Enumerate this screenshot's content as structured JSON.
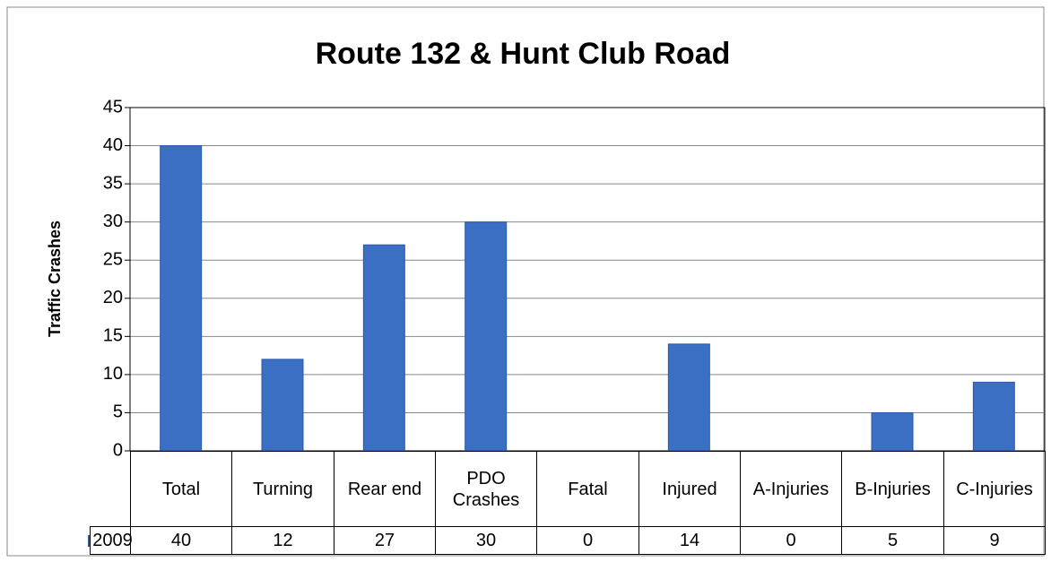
{
  "chart_data": {
    "type": "bar",
    "title": "Route 132 & Hunt Club Road",
    "y_label": "Traffic Crashes",
    "categories": [
      "Total",
      "Turning",
      "Rear end",
      "PDO Crashes",
      "Fatal",
      "Injured",
      "A-Injuries",
      "B-Injuries",
      "C-Injuries"
    ],
    "series": [
      {
        "name": "2009",
        "color": "#3a6fc4",
        "values": [
          40,
          12,
          27,
          30,
          0,
          14,
          0,
          5,
          9
        ]
      }
    ],
    "ylim": [
      0,
      45
    ],
    "yticks": [
      0,
      5,
      10,
      15,
      20,
      25,
      30,
      35,
      40,
      45
    ],
    "grid": true,
    "data_table": true
  }
}
